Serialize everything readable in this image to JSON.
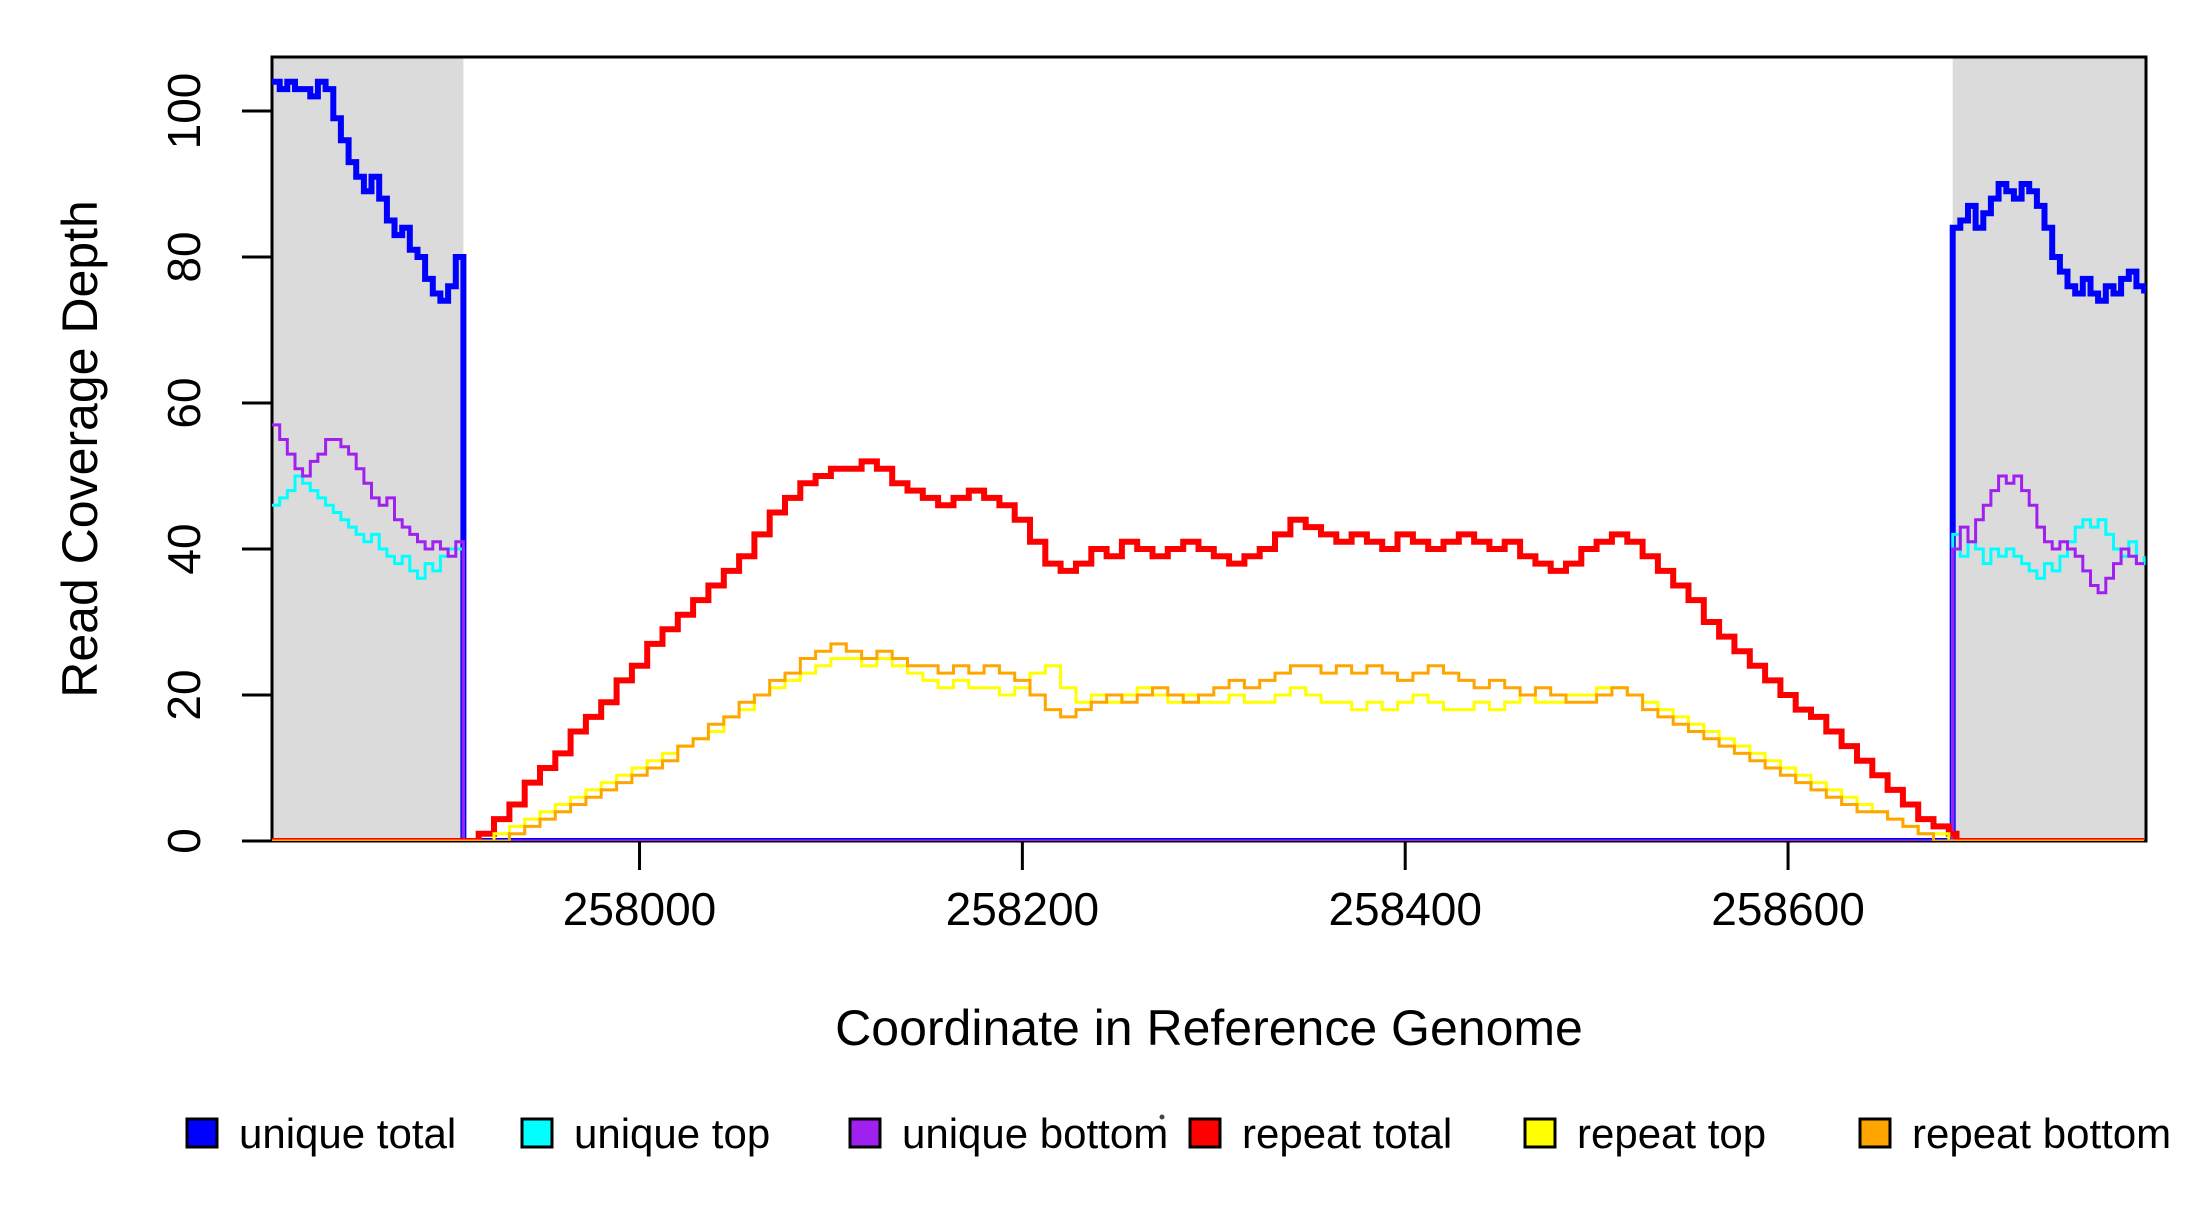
{
  "figure": {
    "background": "#ffffff"
  },
  "chart_data": {
    "type": "line",
    "subtype": "step-coverage-plot",
    "title": "",
    "xlabel": "Coordinate in Reference Genome",
    "ylabel": "Read Coverage Depth",
    "xlim": [
      257808,
      258787
    ],
    "ylim": [
      0,
      107
    ],
    "x_ticks": [
      258000,
      258200,
      258400,
      258600
    ],
    "y_ticks": [
      0,
      20,
      40,
      60,
      80,
      100
    ],
    "grid": false,
    "legend_position": "bottom",
    "shaded_regions": [
      {
        "x0": 257808,
        "x1": 257908,
        "color": "#dbdbdb",
        "meaning": "flanking unique region"
      },
      {
        "x0": 258686,
        "x1": 258787,
        "color": "#dbdbdb",
        "meaning": "flanking unique region"
      }
    ],
    "series": [
      {
        "name": "unique total",
        "color": "#0000ff",
        "width": 6,
        "segments": [
          {
            "x0": 257808,
            "dx": 4,
            "v": [
              104,
              103,
              104,
              103,
              103,
              102,
              104,
              103,
              99,
              96,
              93,
              91,
              89,
              91,
              88,
              85,
              83,
              84,
              81,
              80,
              77,
              75,
              74,
              76,
              80,
              79
            ]
          },
          {
            "x0": 257908,
            "dx": 778,
            "v": [
              0,
              0
            ]
          },
          {
            "x0": 258686,
            "dx": 4,
            "v": [
              84,
              85,
              87,
              84,
              86,
              88,
              90,
              89,
              88,
              90,
              89,
              87,
              84,
              80,
              78,
              76,
              75,
              77,
              75,
              74,
              76,
              75,
              77,
              78,
              76,
              75
            ]
          }
        ]
      },
      {
        "name": "unique top",
        "color": "#00ffff",
        "width": 3,
        "segments": [
          {
            "x0": 257808,
            "dx": 4,
            "v": [
              46,
              47,
              48,
              50,
              49,
              48,
              47,
              46,
              45,
              44,
              43,
              42,
              41,
              42,
              40,
              39,
              38,
              39,
              37,
              36,
              38,
              37,
              39,
              40,
              40,
              39
            ]
          },
          {
            "x0": 257908,
            "dx": 778,
            "v": [
              0,
              0
            ]
          },
          {
            "x0": 258686,
            "dx": 4,
            "v": [
              42,
              39,
              41,
              40,
              38,
              40,
              39,
              40,
              39,
              38,
              37,
              36,
              38,
              37,
              39,
              41,
              43,
              44,
              43,
              44,
              42,
              40,
              39,
              41,
              38,
              39
            ]
          }
        ]
      },
      {
        "name": "unique bottom",
        "color": "#a020f0",
        "width": 3,
        "segments": [
          {
            "x0": 257808,
            "dx": 4,
            "v": [
              57,
              55,
              53,
              51,
              50,
              52,
              53,
              55,
              55,
              54,
              53,
              51,
              49,
              47,
              46,
              47,
              44,
              43,
              42,
              41,
              40,
              41,
              40,
              39,
              41,
              40
            ]
          },
          {
            "x0": 257908,
            "dx": 778,
            "v": [
              0,
              0
            ]
          },
          {
            "x0": 258686,
            "dx": 4,
            "v": [
              40,
              43,
              41,
              44,
              46,
              48,
              50,
              49,
              50,
              48,
              46,
              43,
              41,
              40,
              41,
              40,
              39,
              37,
              35,
              34,
              36,
              38,
              40,
              39,
              38,
              38
            ]
          }
        ]
      },
      {
        "name": "repeat total",
        "color": "#ff0000",
        "width": 6,
        "segments": [
          {
            "x0": 257808,
            "dx": 100,
            "v": [
              0,
              0
            ]
          },
          {
            "x0": 257908,
            "dx": 8,
            "v": [
              0,
              1,
              3,
              5,
              8,
              10,
              12,
              15,
              17,
              19,
              22,
              24,
              27,
              29,
              31,
              33,
              35,
              37,
              39,
              42,
              45,
              47,
              49,
              50,
              51,
              51,
              52,
              51,
              49,
              48,
              47,
              46,
              47,
              48,
              47,
              46,
              44,
              41,
              38,
              37,
              38,
              40,
              39,
              41,
              40,
              39,
              40,
              41,
              40,
              39,
              38,
              39,
              40,
              42,
              44,
              43,
              42,
              41,
              42,
              41,
              40,
              42,
              41,
              40,
              41,
              42,
              41,
              40,
              41,
              39,
              38,
              37,
              38,
              40,
              41,
              42,
              41,
              39,
              37,
              35,
              33,
              30,
              28,
              26,
              24,
              22,
              20,
              18,
              17,
              15,
              13,
              11,
              9,
              7,
              5,
              3,
              2,
              1
            ]
          },
          {
            "x0": 258688,
            "dx": 98,
            "v": [
              0,
              0
            ]
          }
        ]
      },
      {
        "name": "repeat top",
        "color": "#ffff00",
        "width": 3,
        "segments": [
          {
            "x0": 257808,
            "dx": 100,
            "v": [
              0,
              0
            ]
          },
          {
            "x0": 257908,
            "dx": 8,
            "v": [
              0,
              0,
              1,
              2,
              3,
              4,
              5,
              6,
              7,
              8,
              9,
              10,
              11,
              12,
              13,
              14,
              15,
              17,
              18,
              20,
              21,
              22,
              23,
              24,
              25,
              25,
              24,
              25,
              24,
              23,
              22,
              21,
              22,
              21,
              21,
              20,
              21,
              23,
              24,
              21,
              19,
              20,
              19,
              20,
              21,
              20,
              19,
              20,
              19,
              19,
              20,
              19,
              19,
              20,
              21,
              20,
              19,
              19,
              18,
              19,
              18,
              19,
              20,
              19,
              18,
              18,
              19,
              18,
              19,
              20,
              19,
              19,
              20,
              20,
              21,
              21,
              20,
              19,
              18,
              17,
              16,
              15,
              14,
              13,
              12,
              11,
              10,
              9,
              8,
              7,
              6,
              5,
              4,
              3,
              2,
              1,
              1,
              0
            ]
          },
          {
            "x0": 258688,
            "dx": 98,
            "v": [
              0,
              0
            ]
          }
        ]
      },
      {
        "name": "repeat bottom",
        "color": "#ffa500",
        "width": 3,
        "segments": [
          {
            "x0": 257808,
            "dx": 100,
            "v": [
              0,
              0
            ]
          },
          {
            "x0": 257908,
            "dx": 8,
            "v": [
              0,
              0,
              0,
              1,
              2,
              3,
              4,
              5,
              6,
              7,
              8,
              9,
              10,
              11,
              13,
              14,
              16,
              17,
              19,
              20,
              22,
              23,
              25,
              26,
              27,
              26,
              25,
              26,
              25,
              24,
              24,
              23,
              24,
              23,
              24,
              23,
              22,
              20,
              18,
              17,
              18,
              19,
              20,
              19,
              20,
              21,
              20,
              19,
              20,
              21,
              22,
              21,
              22,
              23,
              24,
              24,
              23,
              24,
              23,
              24,
              23,
              22,
              23,
              24,
              23,
              22,
              21,
              22,
              21,
              20,
              21,
              20,
              19,
              19,
              20,
              21,
              20,
              18,
              17,
              16,
              15,
              14,
              13,
              12,
              11,
              10,
              9,
              8,
              7,
              6,
              5,
              4,
              4,
              3,
              2,
              1,
              0,
              0
            ]
          },
          {
            "x0": 258688,
            "dx": 98,
            "v": [
              0,
              0
            ]
          }
        ]
      }
    ]
  },
  "legend": {
    "items": [
      {
        "label": "unique total",
        "color": "#0000ff"
      },
      {
        "label": "unique top",
        "color": "#00ffff"
      },
      {
        "label": "unique bottom",
        "color": "#a020f0"
      },
      {
        "label": "repeat total",
        "color": "#ff0000"
      },
      {
        "label": "repeat top",
        "color": "#ffff00"
      },
      {
        "label": "repeat bottom",
        "color": "#ffa500"
      }
    ]
  }
}
